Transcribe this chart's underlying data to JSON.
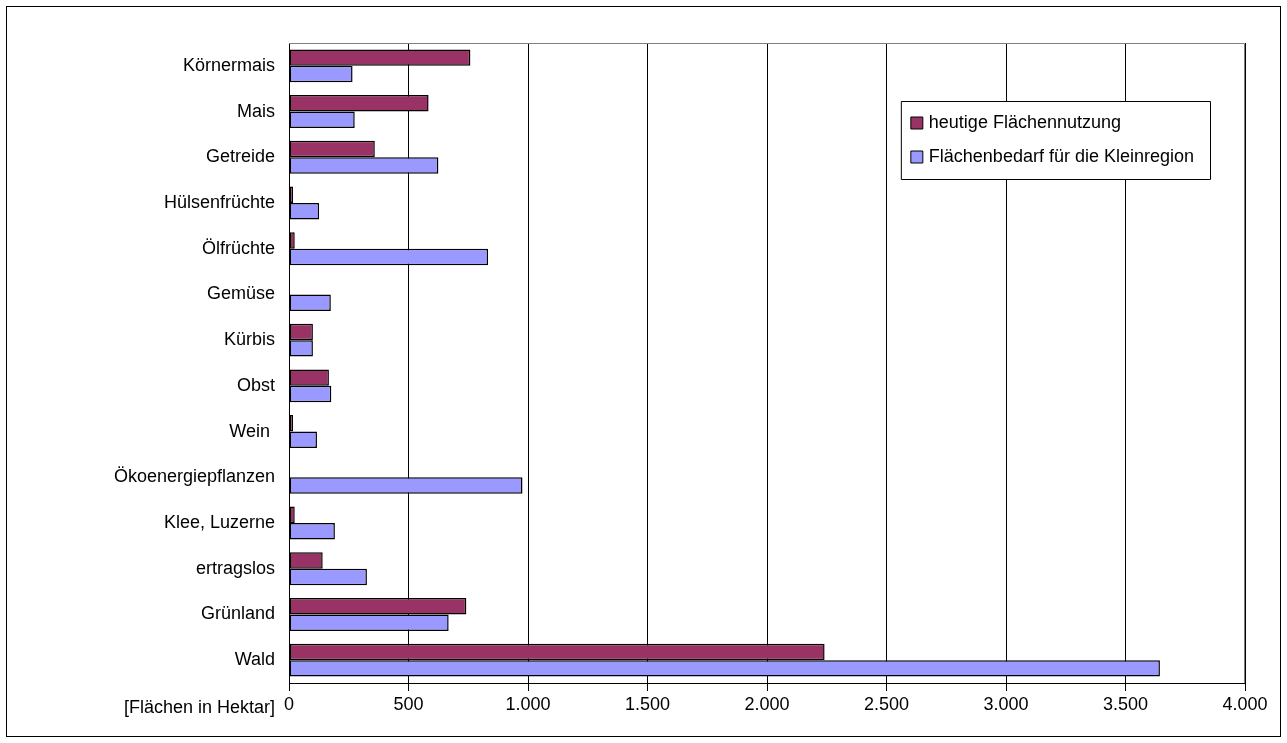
{
  "chart_data": {
    "type": "bar",
    "orientation": "horizontal",
    "xlabel": "[Flächen in Hektar]",
    "categories": [
      "Körnermais",
      "Mais",
      "Getreide",
      "Hülsenfrüchte",
      "Ölfrüchte",
      "Gemüse",
      "Kürbis",
      "Obst",
      "Wein ",
      "Ökoenergiepflanzen",
      "Klee, Luzerne",
      "ertragslos",
      "Grünland",
      "Wald"
    ],
    "series": [
      {
        "name": "heutige Flächennutzung",
        "color": "#993366",
        "values": [
          759,
          584,
          359,
          17,
          24,
          0,
          100,
          167,
          17,
          0,
          24,
          141,
          742,
          2241
        ]
      },
      {
        "name": "Flächenbedarf für die Kleinregion",
        "color": "#9999ff",
        "values": [
          266,
          275,
          625,
          126,
          833,
          175,
          100,
          177,
          117,
          977,
          192,
          326,
          668,
          3644
        ]
      }
    ],
    "xlim": [
      0,
      4000
    ],
    "xticks": [
      {
        "value": 0,
        "label": "0"
      },
      {
        "value": 500,
        "label": "500"
      },
      {
        "value": 1000,
        "label": "1.000"
      },
      {
        "value": 1500,
        "label": "1.500"
      },
      {
        "value": 2000,
        "label": "2.000"
      },
      {
        "value": 2500,
        "label": "2.500"
      },
      {
        "value": 3000,
        "label": "3.000"
      },
      {
        "value": 3500,
        "label": "3.500"
      },
      {
        "value": 4000,
        "label": "4.000"
      }
    ],
    "grid": "x",
    "legend": "top right"
  }
}
